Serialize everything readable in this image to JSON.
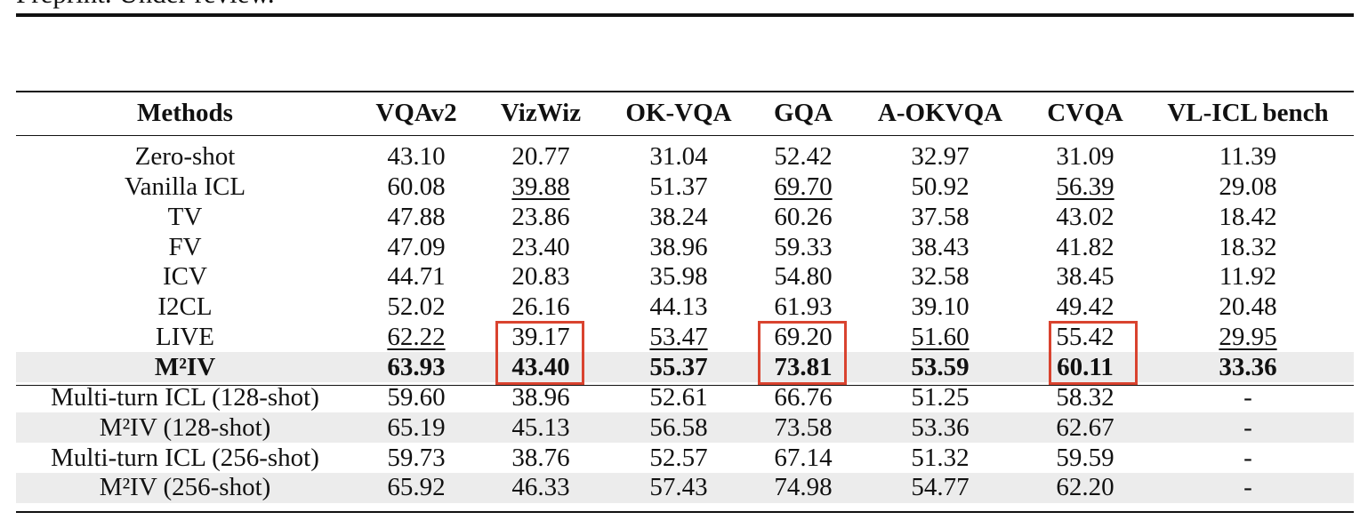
{
  "header": {
    "running_title": "Preprint. Under review."
  },
  "table": {
    "columns": [
      "Methods",
      "VQAv2",
      "VizWiz",
      "OK-VQA",
      "GQA",
      "A-OKVQA",
      "CVQA",
      "VL-ICL bench"
    ],
    "rows": [
      [
        "Zero-shot",
        "43.10",
        "20.77",
        "31.04",
        "52.42",
        "32.97",
        "31.09",
        "11.39"
      ],
      [
        "Vanilla ICL",
        "60.08",
        "39.88",
        "51.37",
        "69.70",
        "50.92",
        "56.39",
        "29.08"
      ],
      [
        "TV",
        "47.88",
        "23.86",
        "38.24",
        "60.26",
        "37.58",
        "43.02",
        "18.42"
      ],
      [
        "FV",
        "47.09",
        "23.40",
        "38.96",
        "59.33",
        "38.43",
        "41.82",
        "18.32"
      ],
      [
        "ICV",
        "44.71",
        "20.83",
        "35.98",
        "54.80",
        "32.58",
        "38.45",
        "11.92"
      ],
      [
        "I2CL",
        "52.02",
        "26.16",
        "44.13",
        "61.93",
        "39.10",
        "49.42",
        "20.48"
      ],
      [
        "LIVE",
        "62.22",
        "39.17",
        "53.47",
        "69.20",
        "51.60",
        "55.42",
        "29.95"
      ],
      [
        "M²IV",
        "63.93",
        "43.40",
        "55.37",
        "73.81",
        "53.59",
        "60.11",
        "33.36"
      ],
      [
        "Multi-turn ICL (128-shot)",
        "59.60",
        "38.96",
        "52.61",
        "66.76",
        "51.25",
        "58.32",
        "-"
      ],
      [
        "M²IV (128-shot)",
        "65.19",
        "45.13",
        "56.58",
        "73.58",
        "53.36",
        "62.67",
        "-"
      ],
      [
        "Multi-turn ICL (256-shot)",
        "59.73",
        "38.76",
        "52.57",
        "67.14",
        "51.32",
        "59.59",
        "-"
      ],
      [
        "M²IV (256-shot)",
        "65.92",
        "46.33",
        "57.43",
        "74.98",
        "54.77",
        "62.20",
        "-"
      ]
    ],
    "bold_rows": [
      7
    ],
    "shaded_rows": [
      7,
      9,
      11
    ],
    "underlined_cells": [
      [
        1,
        2
      ],
      [
        1,
        4
      ],
      [
        1,
        6
      ],
      [
        6,
        1
      ],
      [
        6,
        3
      ],
      [
        6,
        5
      ],
      [
        6,
        7
      ]
    ]
  }
}
